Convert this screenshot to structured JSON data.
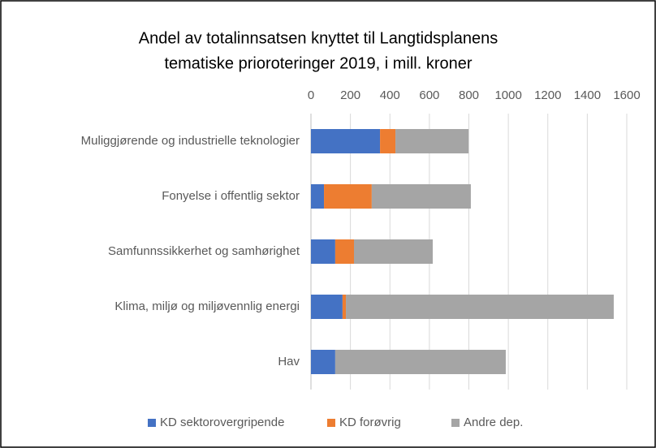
{
  "chart_data": {
    "type": "stacked-bar-horizontal",
    "title": [
      "Andel av totalinnsatsen knyttet til Langtidsplanens",
      "tematiske prioroteringer 2019, i mill. kroner"
    ],
    "categories": [
      "Muliggjørende og industrielle teknologier",
      "Fonyelse i offentlig sektor",
      "Samfunnssikkerhet og samhørighet",
      "Klima, miljø og miljøvennlig energi",
      "Hav"
    ],
    "series": [
      {
        "name": "KD sektorovergripende",
        "color": "#4472c4",
        "values": [
          350,
          66,
          123,
          160,
          123
        ]
      },
      {
        "name": "KD forøvrig",
        "color": "#ed7d31",
        "values": [
          78,
          242,
          95,
          17,
          0
        ]
      },
      {
        "name": "Andre dep.",
        "color": "#a5a5a5",
        "values": [
          370,
          502,
          399,
          1357,
          864
        ]
      }
    ],
    "xlim": [
      0,
      1600
    ],
    "xticks": [
      0,
      200,
      400,
      600,
      800,
      1000,
      1200,
      1400,
      1600
    ],
    "grid": true,
    "legend": "bottom"
  }
}
